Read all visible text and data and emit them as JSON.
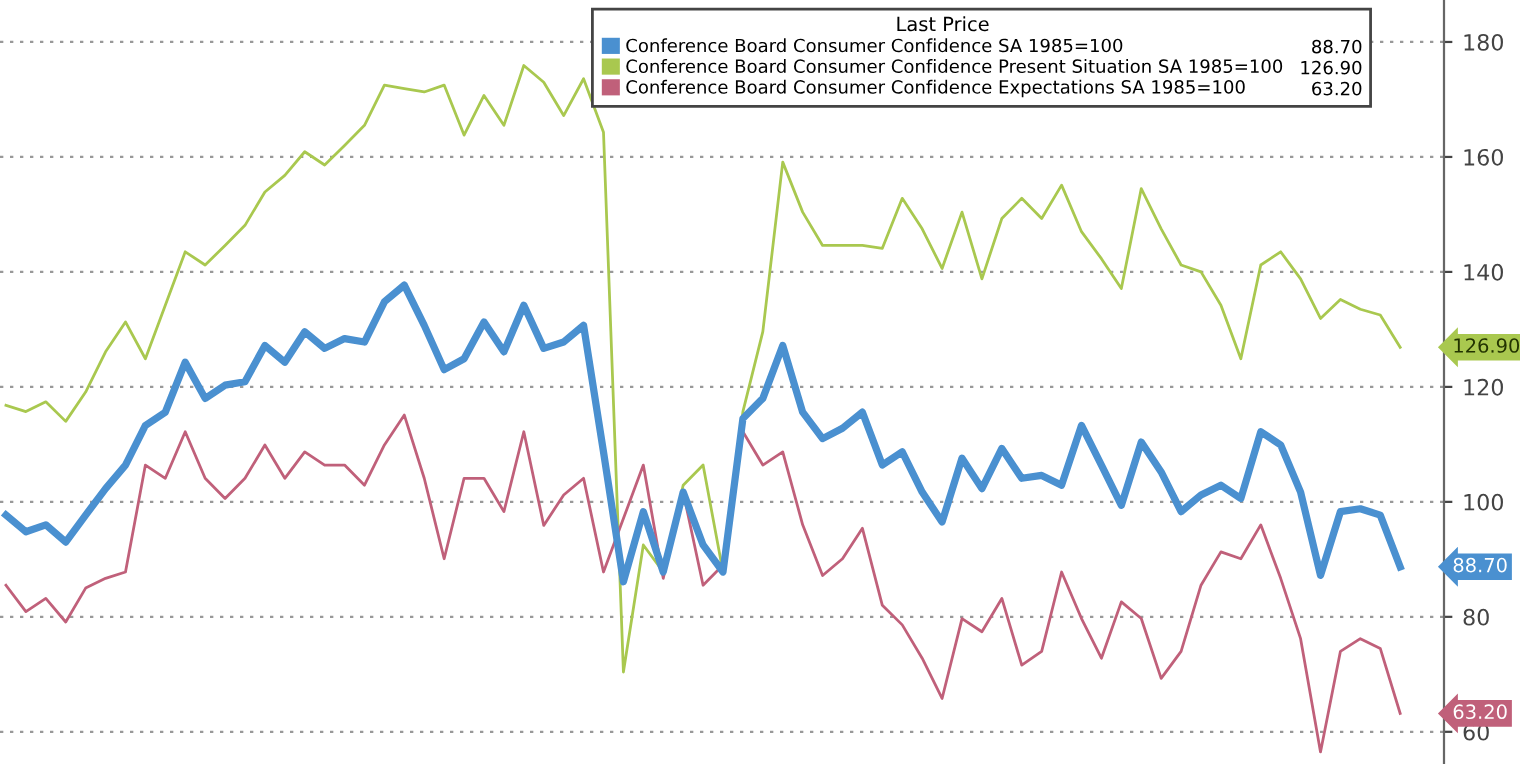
{
  "chart_data": {
    "type": "line",
    "legend_title": "Last Price",
    "categories": [
      null,
      null,
      null,
      null,
      null,
      null,
      null,
      null,
      null,
      null,
      null,
      null,
      null,
      null,
      null,
      null,
      null,
      null,
      null,
      null,
      null,
      null,
      null,
      null,
      null,
      null,
      null,
      null,
      null,
      null,
      null,
      null,
      null,
      null,
      null,
      null,
      null,
      null,
      null,
      null,
      null,
      null,
      null,
      null,
      null,
      null,
      null,
      null,
      null,
      null,
      null,
      null,
      null,
      null,
      null,
      null,
      null,
      null,
      null,
      null,
      null,
      null,
      null,
      null,
      null,
      null,
      null,
      null,
      null,
      null,
      null
    ],
    "ylim": [
      54.4,
      187.3
    ],
    "yticks": [
      60,
      80,
      100,
      120,
      140,
      160,
      180
    ],
    "grid": "y",
    "legend": "top right",
    "tick_labels": "y",
    "annotations": [
      "88.70",
      "126.90",
      "63.20"
    ],
    "series": [
      {
        "name": "Conference Board Consumer Confidence SA 1985=100",
        "color": "#4a90d0",
        "values": [
          97.7,
          94.8,
          96,
          93,
          97.7,
          102.3,
          106.4,
          113.3,
          115.6,
          124.3,
          118,
          120.3,
          120.9,
          127.2,
          124.3,
          129.6,
          126.7,
          128.4,
          127.8,
          134.8,
          137.7,
          130.7,
          123,
          124.9,
          131.3,
          126.1,
          134.2,
          126.7,
          127.8,
          130.7,
          108.7,
          86.1,
          98.3,
          87.8,
          101.7,
          92.5,
          87.8,
          114.5,
          118,
          127.2,
          115.6,
          111,
          112.8,
          115.6,
          106.4,
          108.7,
          101.7,
          96.5,
          107.6,
          102.3,
          109.3,
          104.1,
          104.6,
          102.9,
          113.3,
          106.4,
          99.4,
          110.4,
          105.2,
          98.3,
          101.2,
          102.9,
          100.6,
          112.2,
          109.9,
          101.7,
          87.2,
          98.3,
          98.8,
          97.7,
          88.7
        ]
      },
      {
        "name": "Conference Board Consumer Confidence Present Situation SA 1985=100",
        "color": "#a9c84f",
        "values": [
          116.8,
          115.7,
          117.4,
          114,
          119.1,
          126.1,
          131.3,
          124.9,
          134.2,
          143.5,
          141.2,
          144.6,
          148.1,
          153.9,
          156.8,
          160.9,
          158.6,
          162,
          165.5,
          172.5,
          171.9,
          171.3,
          172.5,
          163.8,
          170.7,
          165.5,
          175.9,
          173,
          167.2,
          173.6,
          164.3,
          70.4,
          92.5,
          87.8,
          102.9,
          106.4,
          87.8,
          115.7,
          129.6,
          159.1,
          150.4,
          144.6,
          144.6,
          144.6,
          144.1,
          152.8,
          147.5,
          140.6,
          150.4,
          138.8,
          149.3,
          152.8,
          149.3,
          155.1,
          147,
          142.3,
          137.1,
          154.5,
          147.5,
          141.2,
          140,
          134.2,
          124.9,
          141.2,
          143.5,
          138.8,
          131.9,
          135.2,
          133.5,
          132.5,
          126.9
        ]
      },
      {
        "name": "Conference Board Consumer Confidence Expectations SA 1985=100",
        "color": "#c0607a",
        "values": [
          85.5,
          80.9,
          83.2,
          79.1,
          85,
          86.7,
          87.8,
          106.4,
          104.1,
          112.2,
          104.1,
          100.6,
          104.1,
          109.9,
          104.1,
          108.7,
          106.4,
          106.4,
          102.9,
          109.9,
          115.1,
          104.1,
          90.1,
          104.1,
          104.1,
          98.3,
          112.2,
          95.9,
          101.2,
          104.1,
          87.8,
          97.1,
          106.4,
          86.7,
          101.7,
          85.5,
          89,
          112.2,
          106.4,
          108.7,
          96,
          87.2,
          90.1,
          95.4,
          82,
          78.6,
          72.8,
          65.8,
          79.7,
          77.4,
          83.2,
          71.6,
          74,
          87.8,
          79.7,
          72.8,
          82.6,
          79.7,
          69.3,
          74,
          85.5,
          91.3,
          90.1,
          96,
          86.7,
          76.2,
          56.5,
          74,
          76.2,
          74.5,
          63.2
        ]
      }
    ]
  }
}
